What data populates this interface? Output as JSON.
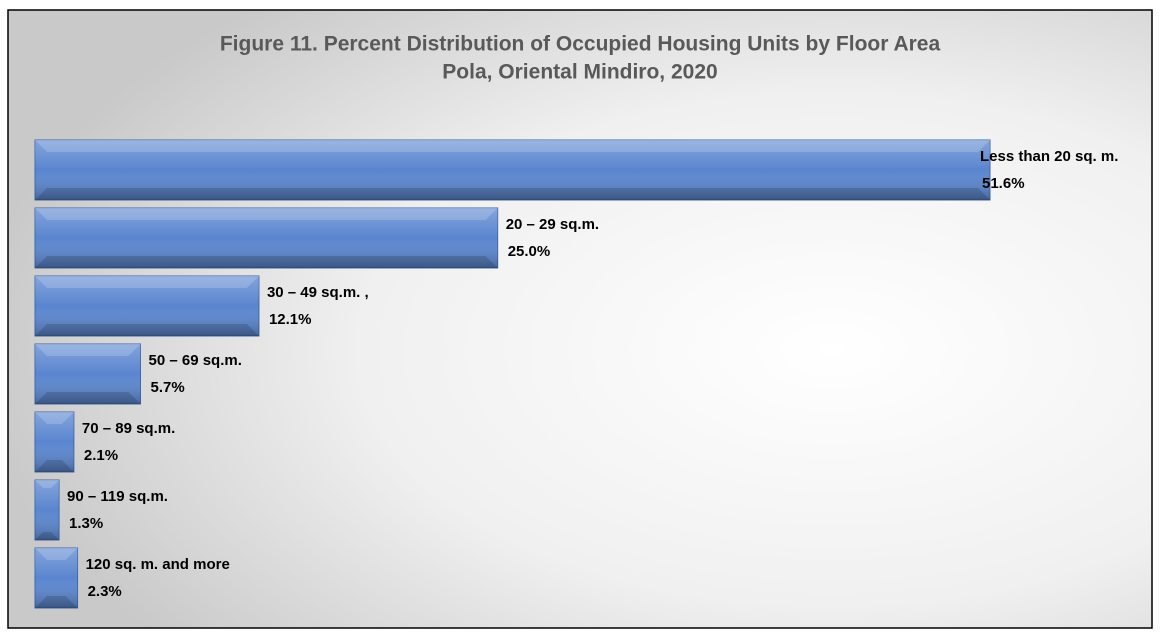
{
  "chart_data": {
    "type": "bar",
    "orientation": "horizontal",
    "title": "Figure 11. Percent Distribution of Occupied Housing Units by Floor Area",
    "subtitle": "Pola, Oriental Mindiro, 2020",
    "categories": [
      "Less than 20 sq. m.",
      "20 – 29 sq.m.",
      "30 – 49 sq.m. ,",
      "50 – 69 sq.m.",
      "70 – 89 sq.m.",
      "90 – 119 sq.m.",
      "120 sq. m. and more"
    ],
    "values": [
      51.6,
      25.0,
      12.1,
      5.7,
      2.1,
      1.3,
      2.3
    ],
    "value_labels": [
      "51.6%",
      "25.0%",
      "12.1%",
      "5.7%",
      "2.1%",
      "1.3%",
      "2.3%"
    ],
    "color": "#5a86cf"
  }
}
